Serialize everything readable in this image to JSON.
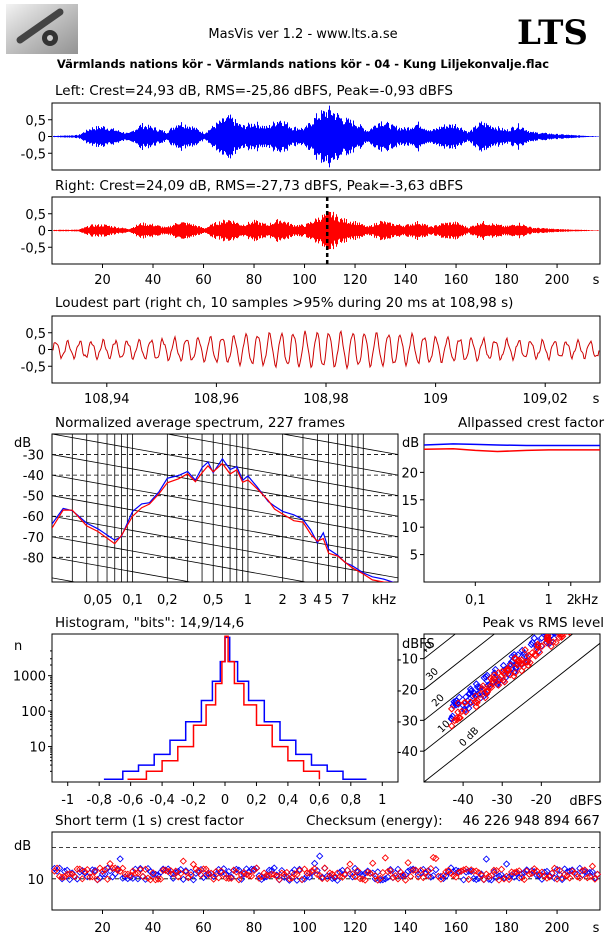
{
  "header": {
    "title": "MasVis ver 1.2 - www.lts.a.se",
    "brand": "LTS",
    "file_title": "Värmlands nations kör - Värmlands nations kör - 04 - Kung Liljekonvalje.flac"
  },
  "colors": {
    "left_channel": "#0000ff",
    "right_channel": "#ff0000",
    "loudest_part": "#cc0000",
    "grid": "#000000"
  },
  "chart_data": [
    {
      "id": "left",
      "type": "line",
      "title": "Left: Crest=24,93 dB, RMS=-25,86 dBFS, Peak=-0,93 dBFS",
      "series": [
        {
          "name": "Left",
          "color": "#0000ff"
        }
      ],
      "y_ticks": [
        "0,5",
        "0",
        "-0,5"
      ],
      "ylim": [
        -1,
        1
      ],
      "xlim": [
        0,
        217
      ],
      "envelope": [
        [
          0,
          0.02
        ],
        [
          10,
          0.05
        ],
        [
          15,
          0.3
        ],
        [
          20,
          0.35
        ],
        [
          25,
          0.22
        ],
        [
          30,
          0.1
        ],
        [
          35,
          0.42
        ],
        [
          40,
          0.3
        ],
        [
          45,
          0.15
        ],
        [
          50,
          0.5
        ],
        [
          55,
          0.35
        ],
        [
          60,
          0.12
        ],
        [
          65,
          0.45
        ],
        [
          70,
          0.68
        ],
        [
          75,
          0.35
        ],
        [
          80,
          0.48
        ],
        [
          85,
          0.32
        ],
        [
          90,
          0.62
        ],
        [
          95,
          0.32
        ],
        [
          100,
          0.28
        ],
        [
          105,
          0.75
        ],
        [
          110,
          0.95
        ],
        [
          115,
          0.62
        ],
        [
          120,
          0.48
        ],
        [
          125,
          0.2
        ],
        [
          130,
          0.56
        ],
        [
          135,
          0.35
        ],
        [
          140,
          0.28
        ],
        [
          145,
          0.46
        ],
        [
          150,
          0.2
        ],
        [
          155,
          0.38
        ],
        [
          160,
          0.42
        ],
        [
          165,
          0.15
        ],
        [
          170,
          0.48
        ],
        [
          175,
          0.36
        ],
        [
          180,
          0.22
        ],
        [
          185,
          0.4
        ],
        [
          190,
          0.15
        ],
        [
          200,
          0.08
        ],
        [
          210,
          0.03
        ],
        [
          217,
          0.01
        ]
      ]
    },
    {
      "id": "right",
      "type": "line",
      "title": "Right: Crest=24,09 dB, RMS=-27,73 dBFS, Peak=-3,63 dBFS",
      "series": [
        {
          "name": "Right",
          "color": "#ff0000"
        }
      ],
      "y_ticks": [
        "0,5",
        "0",
        "-0,5"
      ],
      "x_ticks": [
        "20",
        "40",
        "60",
        "80",
        "100",
        "120",
        "140",
        "160",
        "180",
        "200",
        "s"
      ],
      "x_tick_values": [
        20,
        40,
        60,
        80,
        100,
        120,
        140,
        160,
        180,
        200
      ],
      "ylim": [
        -1,
        1
      ],
      "xlim": [
        0,
        217
      ],
      "marker_x": 108.98,
      "envelope": [
        [
          0,
          0.02
        ],
        [
          10,
          0.03
        ],
        [
          15,
          0.18
        ],
        [
          20,
          0.2
        ],
        [
          25,
          0.12
        ],
        [
          30,
          0.06
        ],
        [
          35,
          0.25
        ],
        [
          40,
          0.2
        ],
        [
          45,
          0.1
        ],
        [
          50,
          0.3
        ],
        [
          55,
          0.22
        ],
        [
          60,
          0.08
        ],
        [
          65,
          0.28
        ],
        [
          70,
          0.38
        ],
        [
          75,
          0.2
        ],
        [
          80,
          0.32
        ],
        [
          85,
          0.2
        ],
        [
          90,
          0.38
        ],
        [
          95,
          0.2
        ],
        [
          100,
          0.18
        ],
        [
          105,
          0.42
        ],
        [
          110,
          0.62
        ],
        [
          115,
          0.38
        ],
        [
          120,
          0.3
        ],
        [
          125,
          0.12
        ],
        [
          130,
          0.32
        ],
        [
          135,
          0.22
        ],
        [
          140,
          0.18
        ],
        [
          145,
          0.3
        ],
        [
          150,
          0.12
        ],
        [
          155,
          0.25
        ],
        [
          160,
          0.28
        ],
        [
          165,
          0.1
        ],
        [
          170,
          0.3
        ],
        [
          175,
          0.22
        ],
        [
          180,
          0.14
        ],
        [
          185,
          0.25
        ],
        [
          190,
          0.1
        ],
        [
          200,
          0.05
        ],
        [
          210,
          0.02
        ],
        [
          217,
          0.01
        ]
      ]
    },
    {
      "id": "loudest",
      "type": "line",
      "title": "Loudest part (right ch, 10 samples >95% during 20 ms at 108,98 s)",
      "series": [
        {
          "name": "Right",
          "color": "#cc0000"
        }
      ],
      "y_ticks": [
        "0,5",
        "0",
        "-0,5"
      ],
      "x_ticks": [
        "108,94",
        "108,96",
        "108,98",
        "109",
        "109,02",
        "s"
      ],
      "x_tick_values": [
        108.94,
        108.96,
        108.98,
        109.0,
        109.02
      ],
      "ylim": [
        -1,
        1
      ],
      "xlim": [
        108.93,
        109.03
      ],
      "cycles": 46
    },
    {
      "id": "spectrum",
      "type": "line",
      "title": "Normalized average spectrum, 227 frames",
      "ylabel": "dB",
      "y_ticks": [
        "-30",
        "-40",
        "-50",
        "-60",
        "-70",
        "-80"
      ],
      "y_tick_values": [
        -30,
        -40,
        -50,
        -60,
        -70,
        -80
      ],
      "x_ticks": [
        "0,05",
        "0,1",
        "0,2",
        "0,5",
        "1",
        "2",
        "3",
        "4",
        "5",
        "7",
        "kHz"
      ],
      "x_tick_values": [
        0.05,
        0.1,
        0.2,
        0.5,
        1,
        2,
        3,
        4,
        5,
        7
      ],
      "xlim": [
        0.02,
        20
      ],
      "ylim": [
        -92,
        -20
      ],
      "series": [
        {
          "name": "Left",
          "color": "#0000ff",
          "points": [
            [
              0.02,
              -64
            ],
            [
              0.025,
              -56
            ],
            [
              0.03,
              -57
            ],
            [
              0.04,
              -63
            ],
            [
              0.05,
              -66
            ],
            [
              0.07,
              -72
            ],
            [
              0.08,
              -69
            ],
            [
              0.1,
              -58
            ],
            [
              0.12,
              -55
            ],
            [
              0.14,
              -53
            ],
            [
              0.17,
              -48
            ],
            [
              0.2,
              -42
            ],
            [
              0.25,
              -40
            ],
            [
              0.3,
              -38
            ],
            [
              0.35,
              -42
            ],
            [
              0.4,
              -37
            ],
            [
              0.45,
              -34
            ],
            [
              0.5,
              -38
            ],
            [
              0.6,
              -33
            ],
            [
              0.7,
              -38
            ],
            [
              0.8,
              -36
            ],
            [
              0.9,
              -42
            ],
            [
              1,
              -40
            ],
            [
              1.2,
              -45
            ],
            [
              1.5,
              -52
            ],
            [
              1.7,
              -55
            ],
            [
              2,
              -57
            ],
            [
              2.5,
              -60
            ],
            [
              3,
              -62
            ],
            [
              3.5,
              -66
            ],
            [
              4,
              -72
            ],
            [
              4.5,
              -68
            ],
            [
              5,
              -76
            ],
            [
              6,
              -78
            ],
            [
              7,
              -82
            ],
            [
              8,
              -84
            ],
            [
              10,
              -87
            ],
            [
              12,
              -89
            ],
            [
              15,
              -91
            ],
            [
              20,
              -92
            ]
          ]
        },
        {
          "name": "Right",
          "color": "#ff0000",
          "points": [
            [
              0.02,
              -65
            ],
            [
              0.025,
              -57
            ],
            [
              0.03,
              -58
            ],
            [
              0.04,
              -64
            ],
            [
              0.05,
              -67
            ],
            [
              0.07,
              -73
            ],
            [
              0.08,
              -70
            ],
            [
              0.1,
              -60
            ],
            [
              0.12,
              -56
            ],
            [
              0.14,
              -54
            ],
            [
              0.17,
              -49
            ],
            [
              0.2,
              -43
            ],
            [
              0.25,
              -42
            ],
            [
              0.3,
              -40
            ],
            [
              0.35,
              -43
            ],
            [
              0.4,
              -39
            ],
            [
              0.45,
              -36
            ],
            [
              0.5,
              -39
            ],
            [
              0.6,
              -35
            ],
            [
              0.7,
              -40
            ],
            [
              0.8,
              -38
            ],
            [
              0.9,
              -44
            ],
            [
              1,
              -42
            ],
            [
              1.2,
              -47
            ],
            [
              1.5,
              -53
            ],
            [
              1.7,
              -57
            ],
            [
              2,
              -58
            ],
            [
              2.5,
              -62
            ],
            [
              3,
              -63
            ],
            [
              3.5,
              -68
            ],
            [
              4,
              -73
            ],
            [
              4.5,
              -70
            ],
            [
              5,
              -78
            ],
            [
              6,
              -80
            ],
            [
              7,
              -83
            ],
            [
              8,
              -85
            ],
            [
              10,
              -88
            ],
            [
              12,
              -90
            ],
            [
              15,
              -92
            ],
            [
              20,
              -92
            ]
          ]
        }
      ]
    },
    {
      "id": "allpassed",
      "type": "line",
      "title": "Allpassed crest factor",
      "ylabel": "dB",
      "y_ticks": [
        "20",
        "15",
        "10",
        "5"
      ],
      "y_tick_values": [
        20,
        15,
        10,
        5
      ],
      "x_ticks": [
        "0,1",
        "1",
        "2",
        "kHz"
      ],
      "x_tick_values": [
        0.1,
        1,
        2
      ],
      "xlim": [
        0.02,
        5
      ],
      "ylim": [
        0,
        27
      ],
      "series": [
        {
          "name": "Left",
          "color": "#0000ff",
          "points": [
            [
              0.02,
              25
            ],
            [
              0.05,
              25.2
            ],
            [
              0.1,
              25.1
            ],
            [
              0.2,
              25
            ],
            [
              0.5,
              24.9
            ],
            [
              1,
              24.9
            ],
            [
              2,
              24.9
            ],
            [
              5,
              24.9
            ]
          ]
        },
        {
          "name": "Right",
          "color": "#ff0000",
          "points": [
            [
              0.02,
              24.2
            ],
            [
              0.05,
              24.3
            ],
            [
              0.1,
              24
            ],
            [
              0.2,
              23.8
            ],
            [
              0.5,
              24
            ],
            [
              1,
              24.1
            ],
            [
              2,
              24.1
            ],
            [
              5,
              24.1
            ]
          ]
        }
      ]
    },
    {
      "id": "histogram",
      "type": "line",
      "title": "Histogram, \"bits\": 14,9/14,6",
      "ylabel": "n",
      "y_ticks": [
        "1000",
        "100",
        "10"
      ],
      "y_tick_values": [
        1000,
        100,
        10
      ],
      "x_ticks": [
        "-1",
        "-0,8",
        "-0,6",
        "-0,4",
        "-0,2",
        "0",
        "0,2",
        "0,4",
        "0,6",
        "0,8",
        "1"
      ],
      "x_tick_values": [
        -1,
        -0.8,
        -0.6,
        -0.4,
        -0.2,
        0,
        0.2,
        0.4,
        0.6,
        0.8,
        1
      ],
      "xlim": [
        -1.1,
        1.1
      ],
      "ylim_log": [
        1,
        15000
      ],
      "series": [
        {
          "name": "Left",
          "color": "#0000ff",
          "points": [
            [
              -0.77,
              1
            ],
            [
              -0.65,
              2
            ],
            [
              -0.55,
              3
            ],
            [
              -0.45,
              6
            ],
            [
              -0.35,
              15
            ],
            [
              -0.25,
              50
            ],
            [
              -0.15,
              200
            ],
            [
              -0.08,
              700
            ],
            [
              -0.03,
              2500
            ],
            [
              0,
              12000
            ],
            [
              0.03,
              2500
            ],
            [
              0.08,
              700
            ],
            [
              0.15,
              200
            ],
            [
              0.25,
              50
            ],
            [
              0.35,
              15
            ],
            [
              0.45,
              6
            ],
            [
              0.55,
              3
            ],
            [
              0.65,
              2
            ],
            [
              0.75,
              1
            ],
            [
              0.9,
              1
            ]
          ]
        },
        {
          "name": "Right",
          "color": "#ff0000",
          "points": [
            [
              -0.62,
              1
            ],
            [
              -0.5,
              2
            ],
            [
              -0.4,
              4
            ],
            [
              -0.3,
              10
            ],
            [
              -0.2,
              40
            ],
            [
              -0.12,
              150
            ],
            [
              -0.06,
              600
            ],
            [
              -0.02,
              2500
            ],
            [
              0,
              13000
            ],
            [
              0.02,
              2500
            ],
            [
              0.06,
              600
            ],
            [
              0.12,
              150
            ],
            [
              0.2,
              40
            ],
            [
              0.3,
              10
            ],
            [
              0.4,
              4
            ],
            [
              0.5,
              2
            ],
            [
              0.6,
              1
            ]
          ]
        }
      ]
    },
    {
      "id": "peak_rms",
      "type": "scatter",
      "title": "Peak vs RMS level",
      "ylabel": "dBFS",
      "xlabel": "dBFS",
      "y_ticks": [
        "-10",
        "-20",
        "-30",
        "-40"
      ],
      "y_tick_values": [
        -10,
        -20,
        -30,
        -40
      ],
      "x_ticks": [
        "-40",
        "-30",
        "-20"
      ],
      "x_tick_values": [
        -40,
        -30,
        -20
      ],
      "xlim": [
        -50,
        -5
      ],
      "ylim": [
        -50,
        -2
      ],
      "diagonal_labels": [
        "40",
        "30",
        "20",
        "10",
        "0 dB"
      ],
      "diagonal_offsets": [
        40,
        30,
        20,
        10,
        0
      ]
    },
    {
      "id": "short_term",
      "type": "scatter",
      "title": "Short term (1 s) crest factor",
      "checksum_label": "Checksum (energy):",
      "checksum_value": "46 226 948 894 667",
      "ylabel": "dB",
      "y_ticks": [
        "10"
      ],
      "y_tick_values": [
        10
      ],
      "x_ticks": [
        "20",
        "40",
        "60",
        "80",
        "100",
        "120",
        "140",
        "160",
        "180",
        "200",
        "s"
      ],
      "x_tick_values": [
        20,
        40,
        60,
        80,
        100,
        120,
        140,
        160,
        180,
        200
      ],
      "xlim": [
        0,
        217
      ],
      "ylim": [
        0,
        25
      ],
      "mean": 11.5
    }
  ]
}
